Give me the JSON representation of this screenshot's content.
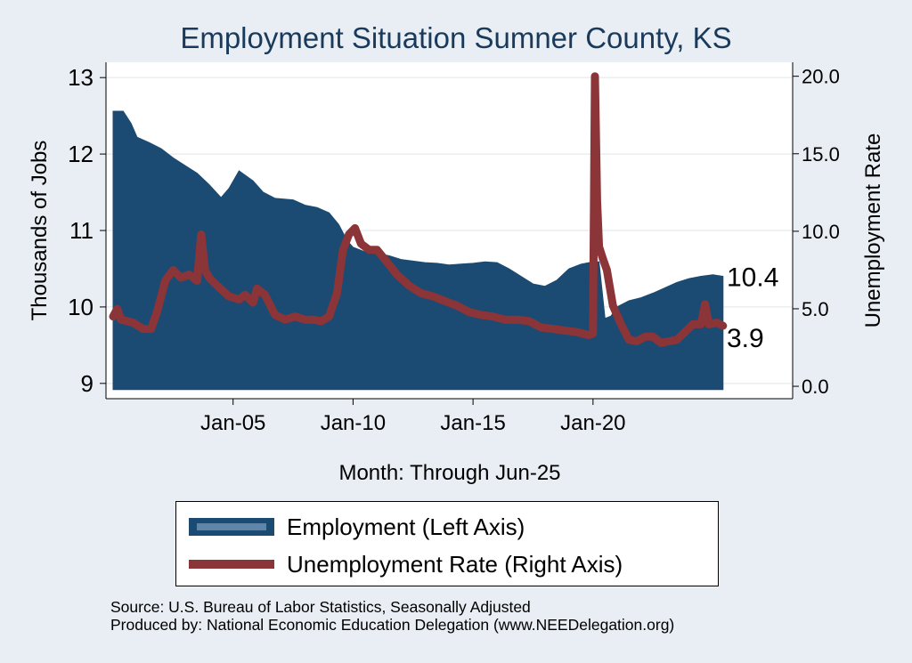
{
  "chart_data": {
    "type": "area+line",
    "title": "Employment Situation Sumner  County, KS",
    "xlabel": "Month: Through Jun-25",
    "ylabel_left": "Thousands of Jobs",
    "ylabel_right": "Unemployment Rate",
    "x_range": [
      2000.0,
      2025.5
    ],
    "ylim_left": [
      8.8,
      13.2
    ],
    "ylim_right": [
      -0.8,
      20.9
    ],
    "x_ticks": [
      {
        "value": 2005,
        "label": "Jan-05"
      },
      {
        "value": 2010,
        "label": "Jan-10"
      },
      {
        "value": 2015,
        "label": "Jan-15"
      },
      {
        "value": 2020,
        "label": "Jan-20"
      }
    ],
    "y_ticks_left": [
      {
        "value": 9,
        "label": "9"
      },
      {
        "value": 10,
        "label": "10"
      },
      {
        "value": 11,
        "label": "11"
      },
      {
        "value": 12,
        "label": "12"
      },
      {
        "value": 13,
        "label": "13"
      }
    ],
    "y_ticks_right": [
      {
        "value": 0,
        "label": "0.0"
      },
      {
        "value": 5,
        "label": "5.0"
      },
      {
        "value": 10,
        "label": "10.0"
      },
      {
        "value": 15,
        "label": "15.0"
      },
      {
        "value": 20,
        "label": "20.0"
      }
    ],
    "grid": true,
    "series": [
      {
        "name": "Employment (Left Axis)",
        "axis": "left",
        "style": "area",
        "color": "#1b4a72",
        "x": [
          2000.0,
          2000.42,
          2000.75,
          2001.0,
          2001.5,
          2002.0,
          2002.5,
          2003.0,
          2003.5,
          2004.0,
          2004.5,
          2004.83,
          2005.25,
          2005.83,
          2006.25,
          2006.75,
          2007.5,
          2008.0,
          2008.5,
          2009.0,
          2009.4,
          2009.75,
          2010.0,
          2010.5,
          2011.0,
          2011.5,
          2012.0,
          2012.5,
          2013.0,
          2013.5,
          2014.0,
          2014.5,
          2015.0,
          2015.5,
          2016.0,
          2016.5,
          2017.0,
          2017.5,
          2018.0,
          2018.5,
          2019.0,
          2019.5,
          2020.0,
          2020.25,
          2020.5,
          2020.75,
          2021.0,
          2021.5,
          2022.0,
          2022.5,
          2023.0,
          2023.5,
          2024.0,
          2024.5,
          2025.0,
          2025.42
        ],
        "values": [
          12.56,
          12.56,
          12.4,
          12.22,
          12.15,
          12.07,
          11.95,
          11.85,
          11.75,
          11.6,
          11.43,
          11.55,
          11.78,
          11.65,
          11.5,
          11.42,
          11.4,
          11.33,
          11.3,
          11.23,
          11.08,
          10.87,
          10.78,
          10.72,
          10.7,
          10.67,
          10.62,
          10.6,
          10.58,
          10.57,
          10.55,
          10.56,
          10.57,
          10.59,
          10.58,
          10.5,
          10.4,
          10.3,
          10.27,
          10.35,
          10.5,
          10.56,
          10.59,
          10.59,
          9.85,
          9.88,
          10.0,
          10.08,
          10.12,
          10.18,
          10.25,
          10.32,
          10.37,
          10.4,
          10.42,
          10.4
        ]
      },
      {
        "name": "Unemployment Rate (Right Axis)",
        "axis": "right",
        "style": "line",
        "color": "#8b3538",
        "x": [
          2000.0,
          2000.17,
          2000.33,
          2000.58,
          2000.83,
          2001.25,
          2001.58,
          2001.83,
          2002.17,
          2002.5,
          2002.83,
          2003.17,
          2003.5,
          2003.67,
          2003.83,
          2004.0,
          2004.33,
          2004.83,
          2005.25,
          2005.5,
          2005.83,
          2006.0,
          2006.33,
          2006.75,
          2007.17,
          2007.58,
          2008.0,
          2008.33,
          2008.67,
          2009.0,
          2009.33,
          2009.58,
          2009.83,
          2010.08,
          2010.33,
          2010.67,
          2011.0,
          2011.42,
          2011.83,
          2012.33,
          2012.83,
          2013.33,
          2013.83,
          2014.33,
          2014.83,
          2015.33,
          2015.83,
          2016.33,
          2016.83,
          2017.33,
          2017.83,
          2018.33,
          2018.83,
          2019.33,
          2019.83,
          2020.0,
          2020.08,
          2020.17,
          2020.25,
          2020.42,
          2020.58,
          2020.83,
          2021.17,
          2021.5,
          2021.83,
          2022.17,
          2022.5,
          2022.83,
          2023.17,
          2023.5,
          2023.83,
          2024.17,
          2024.5,
          2024.67,
          2024.83,
          2025.17,
          2025.42
        ],
        "values": [
          4.5,
          5.0,
          4.3,
          4.2,
          4.1,
          3.7,
          3.7,
          4.8,
          6.8,
          7.5,
          7.0,
          7.2,
          6.8,
          9.8,
          7.5,
          7.0,
          6.5,
          5.8,
          5.6,
          5.9,
          5.4,
          6.3,
          5.9,
          4.6,
          4.3,
          4.5,
          4.3,
          4.3,
          4.2,
          4.5,
          6.0,
          8.8,
          9.8,
          10.2,
          9.2,
          8.8,
          8.8,
          8.0,
          7.2,
          6.5,
          6.0,
          5.8,
          5.5,
          5.2,
          4.8,
          4.6,
          4.5,
          4.3,
          4.3,
          4.2,
          3.8,
          3.7,
          3.6,
          3.5,
          3.3,
          3.4,
          20.0,
          12.0,
          9.0,
          8.2,
          7.5,
          5.2,
          4.0,
          3.0,
          2.9,
          3.2,
          3.2,
          2.8,
          2.9,
          3.0,
          3.5,
          4.0,
          4.0,
          5.3,
          4.0,
          4.1,
          3.9
        ]
      }
    ],
    "end_labels": {
      "employment": "10.4",
      "unemployment": "3.9"
    }
  },
  "legend": {
    "employment": "Employment (Left Axis)",
    "unemployment": "Unemployment Rate (Right Axis)"
  },
  "footer": {
    "source": "Source: U.S. Bureau of Labor Statistics, Seasonally Adjusted",
    "producer": "Produced by: National Economic Education Delegation (www.NEEDelegation.org)"
  }
}
